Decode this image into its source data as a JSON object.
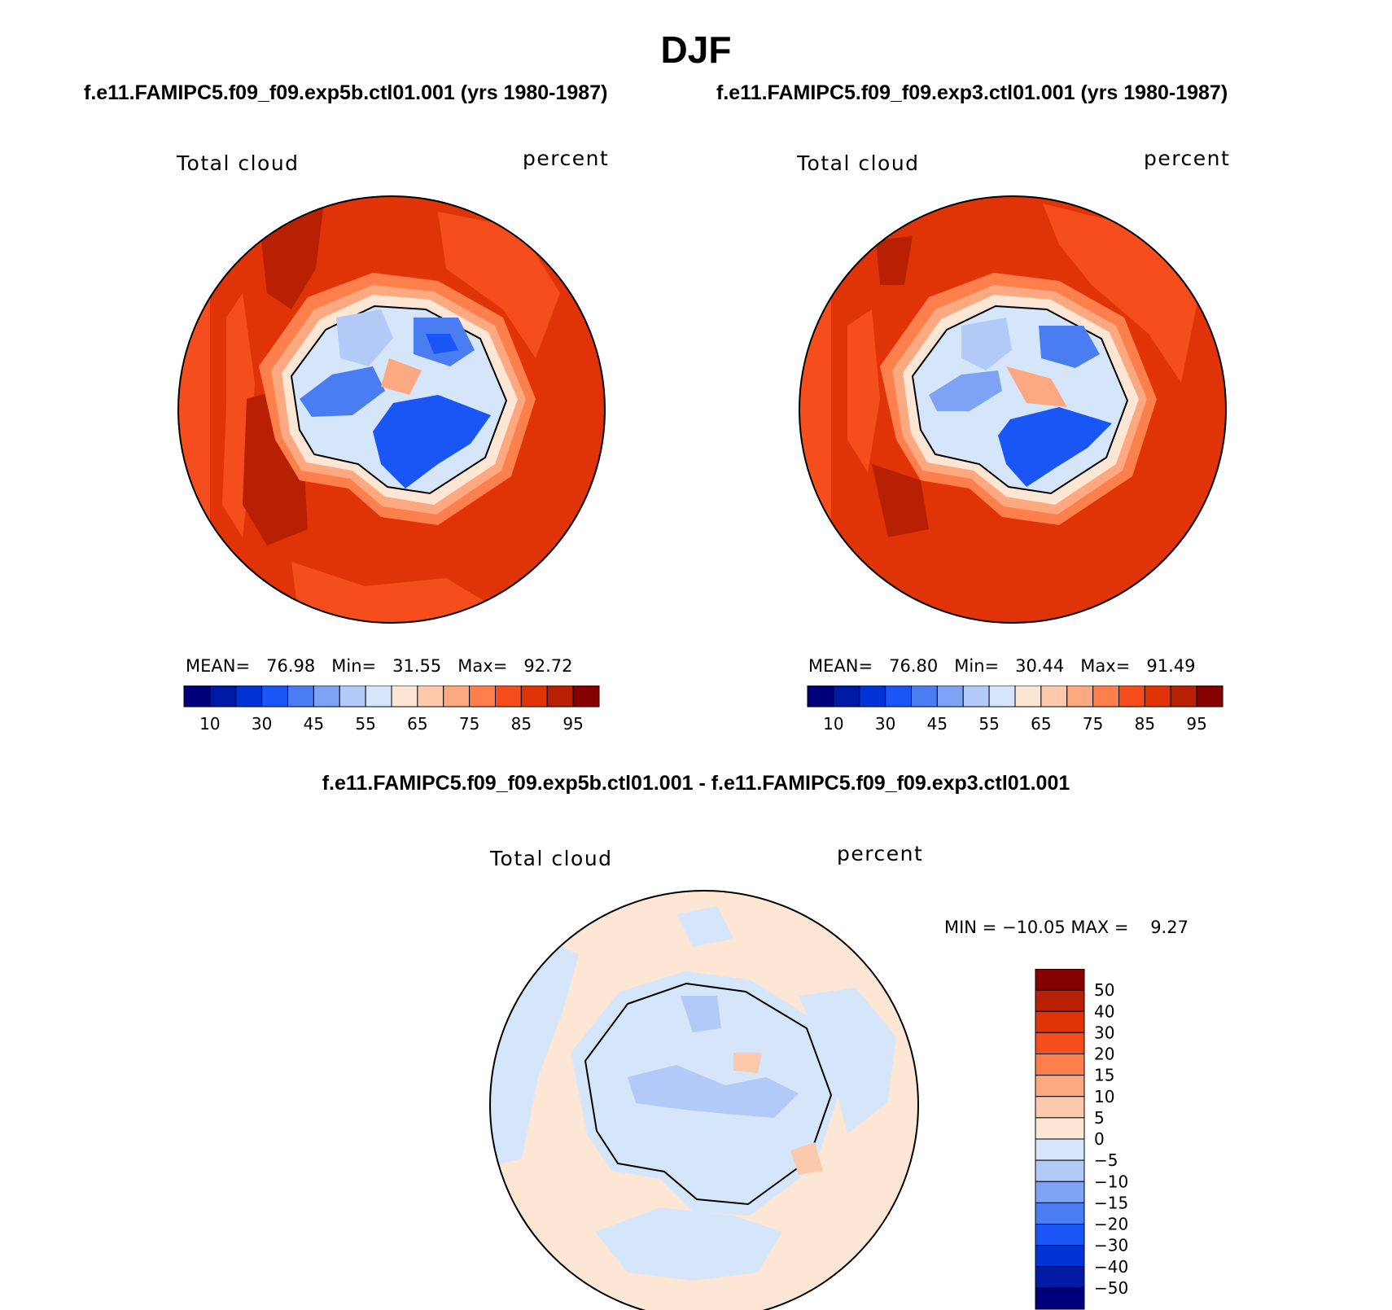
{
  "season": "DJF",
  "subtitles": {
    "left": "f.e11.FAMIPC5.f09_f09.exp5b.ctl01.001 (yrs 1980-1987)",
    "right": "f.e11.FAMIPC5.f09_f09.exp3.ctl01.001 (yrs 1980-1987)",
    "difference": "f.e11.FAMIPC5.f09_f09.exp5b.ctl01.001 - f.e11.FAMIPC5.f09_f09.exp3.ctl01.001"
  },
  "panels": [
    {
      "field": "Total cloud",
      "units": "percent",
      "stats": {
        "mean_label": "MEAN=",
        "mean": "76.98",
        "min_label": "Min=",
        "min": "31.55",
        "max_label": "Max=",
        "max": "92.72"
      }
    },
    {
      "field": "Total cloud",
      "units": "percent",
      "stats": {
        "mean_label": "MEAN=",
        "mean": "76.80",
        "min_label": "Min=",
        "min": "30.44",
        "max_label": "Max=",
        "max": "91.49"
      }
    },
    {
      "field": "Total cloud",
      "units": "percent",
      "stats_text": "MIN = −10.05 MAX =    9.27"
    }
  ],
  "colorbar_main": {
    "colors": [
      "#00007a",
      "#001aa6",
      "#0033d6",
      "#1a55f5",
      "#4a7cf2",
      "#7fa3f4",
      "#b3c9f8",
      "#d6e6fa",
      "#fde6d4",
      "#fcc9ac",
      "#fca880",
      "#fc7f4c",
      "#f54e1c",
      "#e03408",
      "#b82004",
      "#860000"
    ],
    "tick_labels": [
      "10",
      "30",
      "45",
      "55",
      "65",
      "75",
      "85",
      "95"
    ]
  },
  "colorbar_diff": {
    "colors": [
      "#860000",
      "#b82004",
      "#e03408",
      "#f54e1c",
      "#fc7f4c",
      "#fca880",
      "#fcc9ac",
      "#fde6d4",
      "#d6e6fa",
      "#b3c9f8",
      "#7fa3f4",
      "#4a7cf2",
      "#1a55f5",
      "#0033d6",
      "#001aa6",
      "#00007a"
    ],
    "tick_labels": [
      "50",
      "40",
      "30",
      "20",
      "15",
      "10",
      "5",
      "0",
      "−5",
      "−10",
      "−15",
      "−20",
      "−30",
      "−40",
      "−50"
    ]
  },
  "map_colors": {
    "ocean_main": "#e03408",
    "ocean_high": "#b82004",
    "ocean_low": "#f54e1c",
    "coast_band_1": "#fc7f4c",
    "coast_band_2": "#fca880",
    "coast_band_3": "#fde6d4",
    "ice_light": "#d6e6fa",
    "ice_mid": "#b3c9f8",
    "ice_blue": "#7fa3f4",
    "ice_deep": "#4a7cf2",
    "ice_core": "#1a55f5",
    "diff_pos": "#fde6d4",
    "diff_neg": "#d6e6fa",
    "diff_neg2": "#b3c9f8",
    "diff_pos2": "#fcc9ac"
  }
}
